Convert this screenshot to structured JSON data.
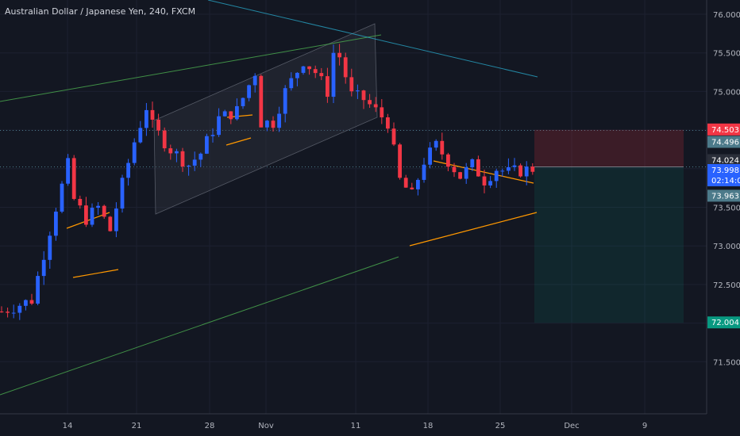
{
  "header": {
    "title": "Australian Dollar / Japanese Yen, 240, FXCM"
  },
  "colors": {
    "background": "#131722",
    "up": "#2962ff",
    "down": "#f23645",
    "grid": "#1c2030",
    "axis_text": "#b2b5be"
  },
  "chart_data": {
    "type": "candlestick",
    "title": "Australian Dollar / Japanese Yen, 240, FXCM",
    "ylim": [
      71.5,
      76.2
    ],
    "y_ticks": [
      "76.000",
      "75.500",
      "75.000",
      "74.500",
      "74.000",
      "73.500",
      "73.000",
      "72.500",
      "72.000",
      "71.500"
    ],
    "x_ticks": [
      "14",
      "21",
      "28",
      "Nov",
      "11",
      "18",
      "25",
      "Dec",
      "9"
    ],
    "price_tags": [
      {
        "value": "74.503",
        "color": "#f23645",
        "name": "stop-loss"
      },
      {
        "value": "74.496",
        "color": "#4c7a8a",
        "name": "hline-upper"
      },
      {
        "value": "74.024",
        "color": "#2a2e39",
        "name": "entry"
      },
      {
        "value": "73.998",
        "color": "#2962ff",
        "name": "last-price"
      },
      {
        "value": "02:14:07",
        "color": "#2962ff",
        "name": "countdown"
      },
      {
        "value": "73.963",
        "color": "#4c7a8a",
        "name": "hline-lower"
      },
      {
        "value": "72.004",
        "color": "#089981",
        "name": "take-profit"
      }
    ],
    "segments": [
      {
        "from": [
          0,
          74.15
        ],
        "to": [
          58,
          74.57
        ],
        "color": "#1f9e63"
      },
      {
        "from": [
          10,
          75.58
        ],
        "to": [
          88,
          74.86
        ],
        "color": "#2bb7da"
      }
    ]
  }
}
